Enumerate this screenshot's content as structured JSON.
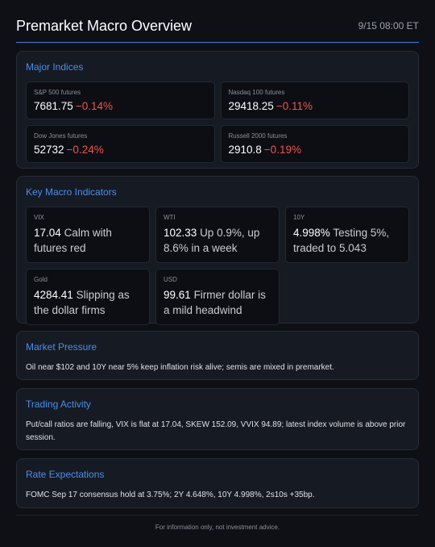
{
  "header": {
    "title": "Premarket Macro Overview",
    "timestamp": "9/15 08:00 ET"
  },
  "major_indices": {
    "title": "Major Indices",
    "items": [
      {
        "label": "S&P 500 futures",
        "value": "7681.75",
        "change": "−0.14%"
      },
      {
        "label": "Nasdaq 100 futures",
        "value": "29418.25",
        "change": "−0.11%"
      },
      {
        "label": "Dow Jones futures",
        "value": "52732",
        "change": "−0.24%"
      },
      {
        "label": "Russell 2000 futures",
        "value": "2910.8",
        "change": "−0.19%"
      }
    ]
  },
  "macro_indicators": {
    "title": "Key Macro Indicators",
    "items": [
      {
        "label": "VIX",
        "value": "17.04",
        "note": "Calm with futures red"
      },
      {
        "label": "WTI",
        "value": "102.33",
        "note": "Up 0.9%, up 8.6% in a week"
      },
      {
        "label": "10Y",
        "value": "4.998%",
        "note": "Testing 5%, traded to 5.043"
      },
      {
        "label": "Gold",
        "value": "4284.41",
        "note": "Slipping as the dollar firms"
      },
      {
        "label": "USD",
        "value": "99.61",
        "note": "Firmer dollar is a mild headwind"
      }
    ]
  },
  "market_pressure": {
    "title": "Market Pressure",
    "text": "Oil near $102 and 10Y near 5% keep inflation risk alive; semis are mixed in premarket."
  },
  "trading_activity": {
    "title": "Trading Activity",
    "text": "Put/call ratios are falling, VIX is flat at 17.04, SKEW 152.09, VVIX 94.89; latest index volume is above prior session."
  },
  "rate_expectations": {
    "title": "Rate Expectations",
    "text": "FOMC Sep 17 consensus hold at 3.75%; 2Y 4.648%, 10Y 4.998%, 2s10s +35bp."
  },
  "footer": {
    "text": "For information only, not investment advice."
  }
}
